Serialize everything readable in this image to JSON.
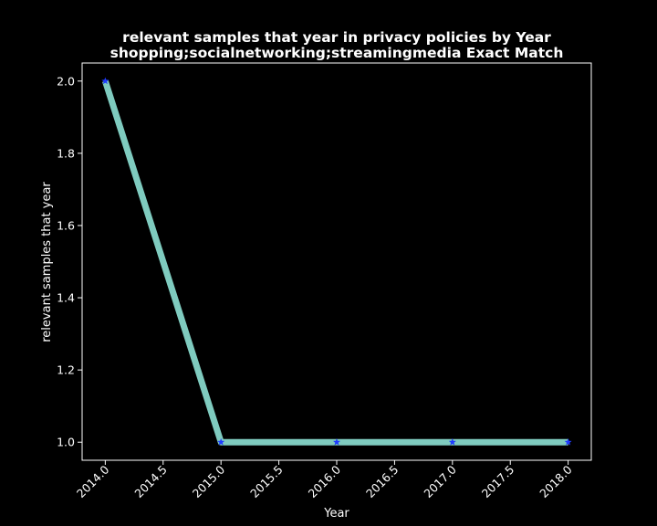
{
  "chart_data": {
    "type": "line",
    "title_lines": [
      "relevant samples that year in privacy policies by Year",
      "shopping;socialnetworking;streamingmedia Exact Match"
    ],
    "xlabel": "Year",
    "ylabel": "relevant samples that year",
    "x": [
      2014,
      2015,
      2016,
      2017,
      2018
    ],
    "series": [
      {
        "values": [
          2,
          1,
          1,
          1,
          1
        ]
      }
    ],
    "xlim": [
      2013.8,
      2018.2
    ],
    "ylim": [
      0.95,
      2.05
    ],
    "x_ticks": [
      2014.0,
      2014.5,
      2015.0,
      2015.5,
      2016.0,
      2016.5,
      2017.0,
      2017.5,
      2018.0
    ],
    "x_tick_labels": [
      "2014.0",
      "2014.5",
      "2015.0",
      "2015.5",
      "2016.0",
      "2016.5",
      "2017.0",
      "2017.5",
      "2018.0"
    ],
    "y_ticks": [
      1.0,
      1.2,
      1.4,
      1.6,
      1.8,
      2.0
    ],
    "y_tick_labels": [
      "1.0",
      "1.2",
      "1.4",
      "1.6",
      "1.8",
      "2.0"
    ],
    "grid": false,
    "legend": "none",
    "marker": "star",
    "colors": {
      "background": "#000000",
      "axes": "#ffffff",
      "line": "#7fcbbf",
      "marker": "#1f3bff"
    }
  }
}
